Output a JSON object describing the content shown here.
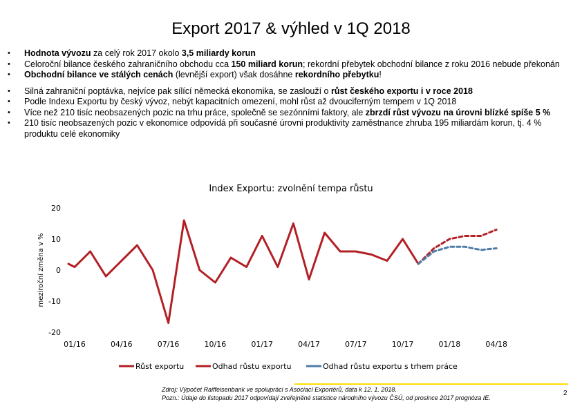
{
  "title": "Export 2017 & výhled v 1Q 2018",
  "bullets": [
    {
      "parts": [
        {
          "t": "Hodnota vývozu",
          "b": true
        },
        {
          "t": " za celý rok 2017 okolo "
        },
        {
          "t": "3,5 miliardy korun",
          "b": true
        }
      ]
    },
    {
      "parts": [
        {
          "t": "Celoroční bilance českého zahraničního obchodu cca "
        },
        {
          "t": "150 miliard korun",
          "b": true
        },
        {
          "t": "; rekordní přebytek obchodní bilance z roku 2016 nebude překonán"
        }
      ]
    },
    {
      "parts": [
        {
          "t": "Obchodní bilance ve stálých cenách",
          "b": true
        },
        {
          "t": " (levnější export) však dosáhne "
        },
        {
          "t": "rekordního přebytku",
          "b": true
        },
        {
          "t": "!"
        }
      ]
    },
    {
      "gap": true,
      "parts": [
        {
          "t": "Silná zahraniční poptávka, nejvíce pak sílící německá ekonomika, se zaslouží o "
        },
        {
          "t": "růst českého exportu i v roce 2018",
          "b": true
        }
      ]
    },
    {
      "parts": [
        {
          "t": "Podle Indexu Exportu by český vývoz, nebýt kapacitních omezení, mohl růst až dvouciferným tempem v 1Q 2018"
        }
      ]
    },
    {
      "parts": [
        {
          "t": "Více než 210 tisíc neobsazených pozic na trhu práce, společně se sezónními faktory, ale "
        },
        {
          "t": "zbrzdí růst vývozu na úrovni blízké spíše 5 %",
          "b": true
        }
      ]
    },
    {
      "parts": [
        {
          "t": "210 tisíc neobsazených pozic v ekonomice odpovídá při současné úrovni produktivity zaměstnance zhruba 195 miliardám korun, tj. 4 % produktu celé ekonomiky"
        }
      ]
    }
  ],
  "chart_title": "Index Exportu: zvolnění tempa růstu",
  "chart_data": {
    "type": "line",
    "title": "Index Exportu: zvolnění tempa růstu",
    "ylabel": "meziroční změna v %",
    "xlabel": "",
    "ylim": [
      -20,
      20
    ],
    "yticks": [
      20,
      10,
      0,
      -10,
      -20
    ],
    "xticks": [
      {
        "label": "01/16",
        "i": 0
      },
      {
        "label": "04/16",
        "i": 3
      },
      {
        "label": "07/16",
        "i": 6
      },
      {
        "label": "10/16",
        "i": 9
      },
      {
        "label": "01/17",
        "i": 12
      },
      {
        "label": "04/17",
        "i": 15
      },
      {
        "label": "07/17",
        "i": 18
      },
      {
        "label": "10/17",
        "i": 21
      },
      {
        "label": "01/18",
        "i": 24
      },
      {
        "label": "04/18",
        "i": 27
      }
    ],
    "series": [
      {
        "name": "Růst exportu",
        "color": "#b22025",
        "dash": false,
        "x": [
          -0.4,
          0,
          1,
          2,
          3,
          4,
          5,
          6,
          7,
          8,
          9,
          10,
          11,
          12,
          13,
          14,
          15,
          16,
          17,
          18,
          19,
          20,
          21,
          22
        ],
        "y": [
          2,
          1,
          6,
          -2,
          3,
          8,
          0,
          -17,
          16,
          0,
          -4,
          4,
          1,
          11,
          1,
          15,
          -3,
          12,
          6,
          6,
          5,
          3,
          10,
          2
        ]
      },
      {
        "name": "Odhad růstu exportu",
        "color": "#b22025",
        "dash": true,
        "x": [
          22,
          23,
          24,
          25,
          26,
          27
        ],
        "y": [
          2,
          7,
          10,
          11,
          11,
          13
        ]
      },
      {
        "name": "Odhad růstu exportu s trhem práce",
        "color": "#4f7ca6",
        "dash": true,
        "x": [
          22,
          23,
          24,
          25,
          26,
          27
        ],
        "y": [
          2,
          6,
          7.5,
          7.5,
          6.5,
          7
        ]
      }
    ]
  },
  "footer": {
    "source": "Zdroj: Výpočet Raiffeisenbank ve spolupráci s Asociací Exportérů, data k 12. 1. 2018.",
    "note": "Pozn.: Údaje do listopadu 2017 odpovídají zveřejněné statistice národního vývozu ČSÚ, od prosince 2017 prognóza IE."
  },
  "page_number": "2",
  "colors": {
    "accent_line": "#ffde00",
    "series_red": "#b22025",
    "series_blue": "#4f7ca6"
  }
}
